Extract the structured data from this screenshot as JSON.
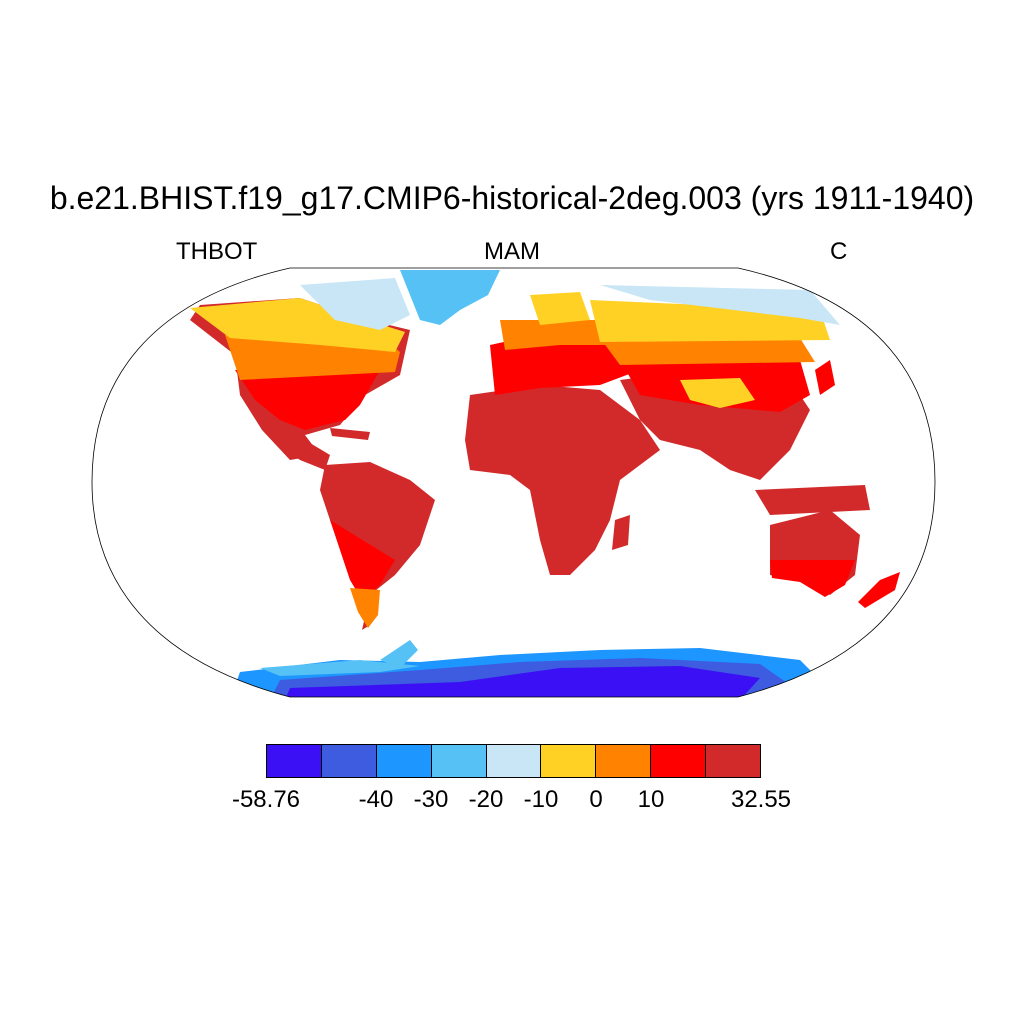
{
  "title": "b.e21.BHIST.f19_g17.CMIP6-historical-2deg.003 (yrs 1911-1940)",
  "left_label": "THBOT",
  "center_label": "MAM",
  "right_label": "C",
  "map": {
    "projection": "robinson",
    "variable": "THBOT",
    "season": "MAM",
    "units": "C",
    "region_colors": {
      "ocean": "#ffffff",
      "antarctica_interior": "#3c10f5",
      "antarctica_mid": "#3d5ce0",
      "antarctica_edge": "#1e96ff",
      "greenland": "#56c1f5",
      "high_arctic": "#c8e6f5",
      "subarctic": "#ffd125",
      "midlatitude": "#ff8200",
      "subtropical": "#ff0000",
      "tropical": "#d22a2a"
    }
  },
  "colorbar": {
    "min": -58.76,
    "max": 32.55,
    "levels": [
      -50,
      -40,
      -30,
      -20,
      -10,
      0,
      10,
      20
    ],
    "colors": [
      "#3c10f5",
      "#3d5ce0",
      "#1e96ff",
      "#56c1f5",
      "#c8e6f5",
      "#ffd125",
      "#ff8200",
      "#ff0000",
      "#d22a2a"
    ],
    "labels": [
      {
        "text": "-58.76",
        "boundary": 0
      },
      {
        "text": "-40",
        "boundary": 2
      },
      {
        "text": "-30",
        "boundary": 3
      },
      {
        "text": "-20",
        "boundary": 4
      },
      {
        "text": "-10",
        "boundary": 5
      },
      {
        "text": "0",
        "boundary": 6
      },
      {
        "text": "10",
        "boundary": 7
      },
      {
        "text": "32.55",
        "boundary": 9
      }
    ]
  }
}
